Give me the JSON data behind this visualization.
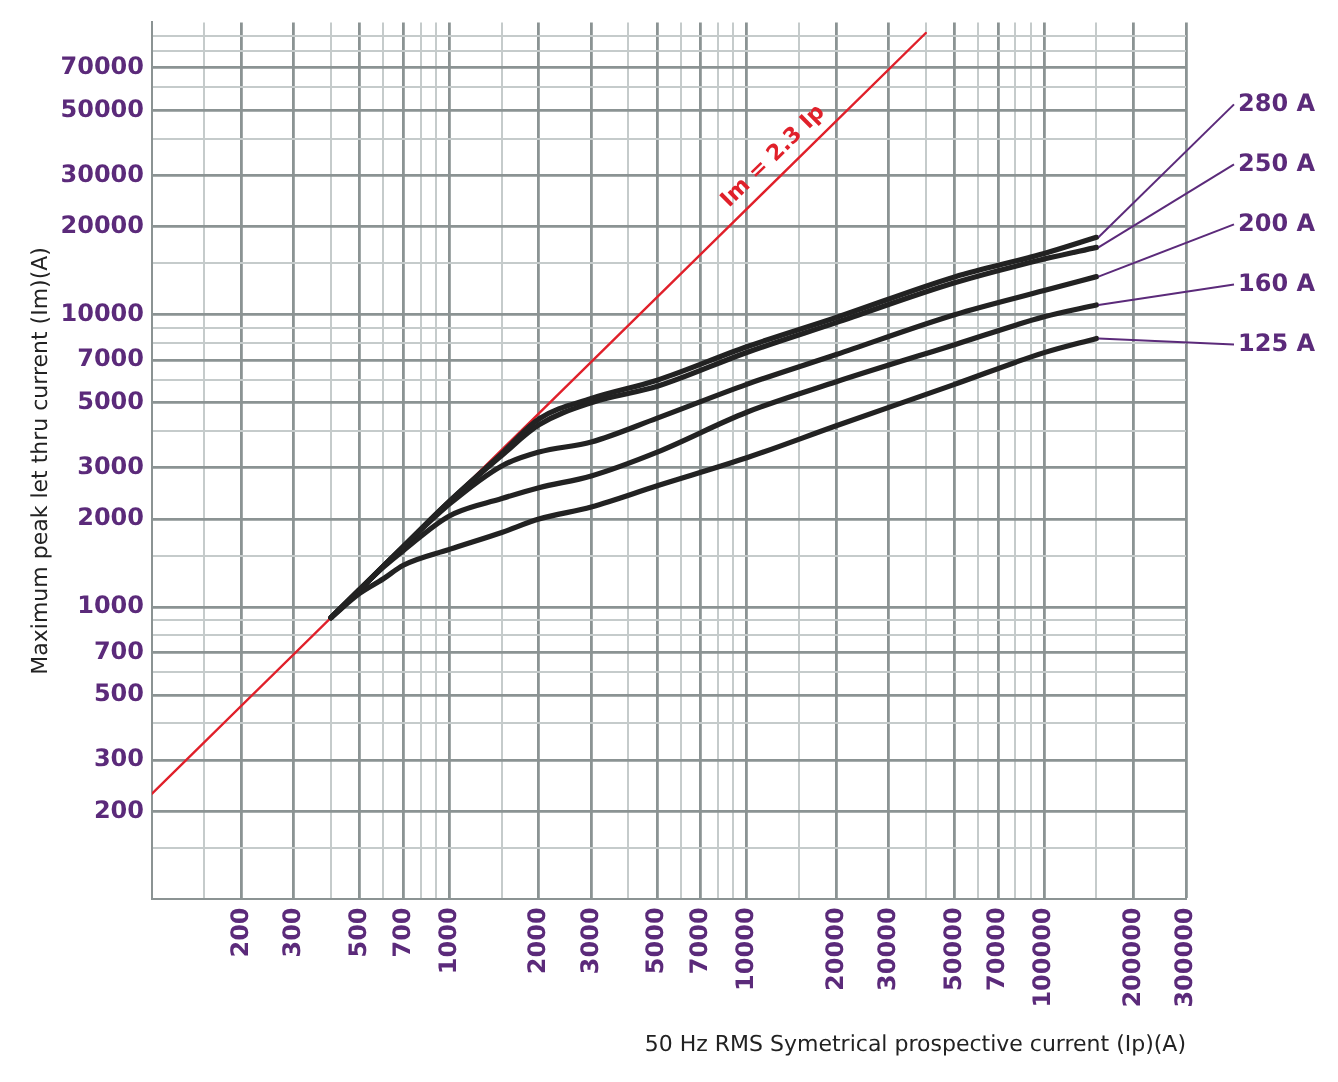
{
  "chart_data": {
    "type": "line",
    "xlabel": "50 Hz RMS Symetrical prospective current (Ip)(A)",
    "ylabel": "Maximum peak let thru current (Im)(A)",
    "log": "xy",
    "grid": true,
    "legend": false,
    "marker": "none",
    "line_style": "solid",
    "xlim": [
      100,
      300000
    ],
    "ylim": [
      100,
      100000
    ],
    "xticks": [
      {
        "value": 150,
        "label": null
      },
      200,
      300,
      {
        "value": 400,
        "label": null
      },
      500,
      {
        "value": 600,
        "label": null
      },
      700,
      {
        "value": 800,
        "label": null
      },
      {
        "value": 900,
        "label": null
      },
      1000,
      {
        "value": 1500,
        "label": null
      },
      2000,
      3000,
      {
        "value": 4000,
        "label": null
      },
      5000,
      {
        "value": 6000,
        "label": null
      },
      7000,
      {
        "value": 8000,
        "label": null
      },
      {
        "value": 9000,
        "label": null
      },
      10000,
      {
        "value": 15000,
        "label": null
      },
      20000,
      30000,
      {
        "value": 40000,
        "label": null
      },
      50000,
      {
        "value": 60000,
        "label": null
      },
      70000,
      {
        "value": 80000,
        "label": null
      },
      {
        "value": 90000,
        "label": null
      },
      100000,
      {
        "value": 150000,
        "label": null
      },
      200000,
      300000
    ],
    "yticks": [
      {
        "value": 150,
        "label": null
      },
      200,
      300,
      {
        "value": 400,
        "label": null
      },
      500,
      {
        "value": 600,
        "label": null
      },
      700,
      {
        "value": 800,
        "label": null
      },
      {
        "value": 900,
        "label": null
      },
      1000,
      {
        "value": 1500,
        "label": null
      },
      2000,
      3000,
      {
        "value": 4000,
        "label": null
      },
      5000,
      {
        "value": 6000,
        "label": null
      },
      7000,
      {
        "value": 8000,
        "label": null
      },
      {
        "value": 9000,
        "label": null
      },
      10000,
      {
        "value": 15000,
        "label": null
      },
      20000,
      30000,
      {
        "value": 40000,
        "label": null
      },
      50000,
      {
        "value": 60000,
        "label": null
      },
      70000,
      {
        "value": 80000,
        "label": null
      },
      {
        "value": 90000,
        "label": null
      }
    ],
    "x": [
      400,
      500,
      600,
      700,
      1000,
      1500,
      2000,
      3000,
      5000,
      10000,
      20000,
      50000,
      100000,
      150000
    ],
    "series": [
      {
        "name": "280 A",
        "color": "#222222",
        "values": [
          920,
          1150,
          1380,
          1610,
          2300,
          3350,
          4400,
          5170,
          5970,
          7770,
          9790,
          13470,
          16200,
          18400
        ]
      },
      {
        "name": "250 A",
        "color": "#222222",
        "values": [
          920,
          1150,
          1380,
          1610,
          2300,
          3300,
          4200,
          5000,
          5690,
          7430,
          9400,
          12860,
          15500,
          17000
        ]
      },
      {
        "name": "200 A",
        "color": "#222222",
        "values": [
          920,
          1150,
          1380,
          1610,
          2250,
          3040,
          3390,
          3670,
          4430,
          5780,
          7310,
          10000,
          12100,
          13500
        ]
      },
      {
        "name": "160 A",
        "color": "#222222",
        "values": [
          920,
          1150,
          1370,
          1560,
          2050,
          2350,
          2560,
          2810,
          3390,
          4640,
          5900,
          7900,
          9840,
          10800
        ]
      },
      {
        "name": "125 A",
        "color": "#222222",
        "values": [
          920,
          1115,
          1250,
          1390,
          1575,
          1800,
          2000,
          2200,
          2600,
          3240,
          4170,
          5780,
          7420,
          8300
        ]
      },
      {
        "name": "Im = 2.3 Ip",
        "color": "#e0202a",
        "x": [
          100,
          40000
        ],
        "values": [
          230,
          92000
        ]
      }
    ]
  }
}
